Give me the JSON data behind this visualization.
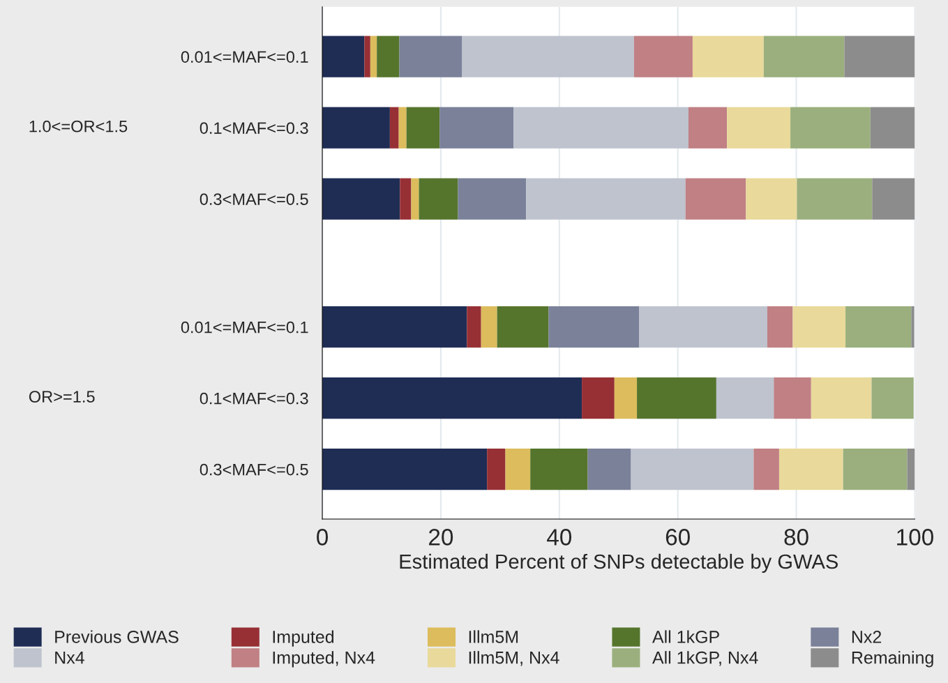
{
  "chart_data": {
    "type": "bar",
    "orientation": "horizontal",
    "stacked": true,
    "xlabel": "Estimated Percent of SNPs detectable by GWAS",
    "categories": [
      "0.01<=MAF<=0.1",
      "0.1<MAF<=0.3",
      "0.3<MAF<=0.5",
      "0.01<=MAF<=0.1",
      "0.1<MAF<=0.3",
      "0.3<MAF<=0.5"
    ],
    "annotations": [
      "1.0<=OR<1.5",
      "OR>=1.5"
    ],
    "xlim": [
      0,
      100
    ],
    "xticks": [
      0,
      20,
      40,
      60,
      80,
      100
    ],
    "grid": "x",
    "legend": "bottom",
    "series": [
      {
        "name": "Previous GWAS",
        "color": "#1f2d55",
        "values": [
          7.1,
          11.4,
          13.1,
          24.4,
          43.8,
          27.8
        ]
      },
      {
        "name": "Imputed",
        "color": "#973035",
        "values": [
          1.0,
          1.5,
          1.9,
          2.4,
          5.5,
          3.1
        ]
      },
      {
        "name": "Illm5M",
        "color": "#dcbc5c",
        "values": [
          1.1,
          1.3,
          1.3,
          2.7,
          3.8,
          4.2
        ]
      },
      {
        "name": "All 1kGP",
        "color": "#55752d",
        "values": [
          3.8,
          5.6,
          6.6,
          8.7,
          13.4,
          9.7
        ]
      },
      {
        "name": "Nx2",
        "color": "#7a8199",
        "values": [
          10.6,
          12.5,
          11.5,
          15.3,
          0,
          7.3
        ]
      },
      {
        "name": "Nx4",
        "color": "#bec3ce",
        "values": [
          29.0,
          29.5,
          26.9,
          21.6,
          9.7,
          20.7
        ]
      },
      {
        "name": "Imputed, Nx4",
        "color": "#c08084",
        "values": [
          9.9,
          6.5,
          10.2,
          4.3,
          6.3,
          4.3
        ]
      },
      {
        "name": "Illm5M, Nx4",
        "color": "#e9d99a",
        "values": [
          12.0,
          10.7,
          8.6,
          8.9,
          10.2,
          10.8
        ]
      },
      {
        "name": "All 1kGP, Nx4",
        "color": "#9aaf7d",
        "values": [
          13.6,
          13.5,
          12.7,
          11.1,
          7.1,
          10.8
        ]
      },
      {
        "name": "Remaining",
        "color": "#8c8c8c",
        "values": [
          11.9,
          7.5,
          7.2,
          0.5,
          0,
          1.3
        ]
      }
    ]
  }
}
